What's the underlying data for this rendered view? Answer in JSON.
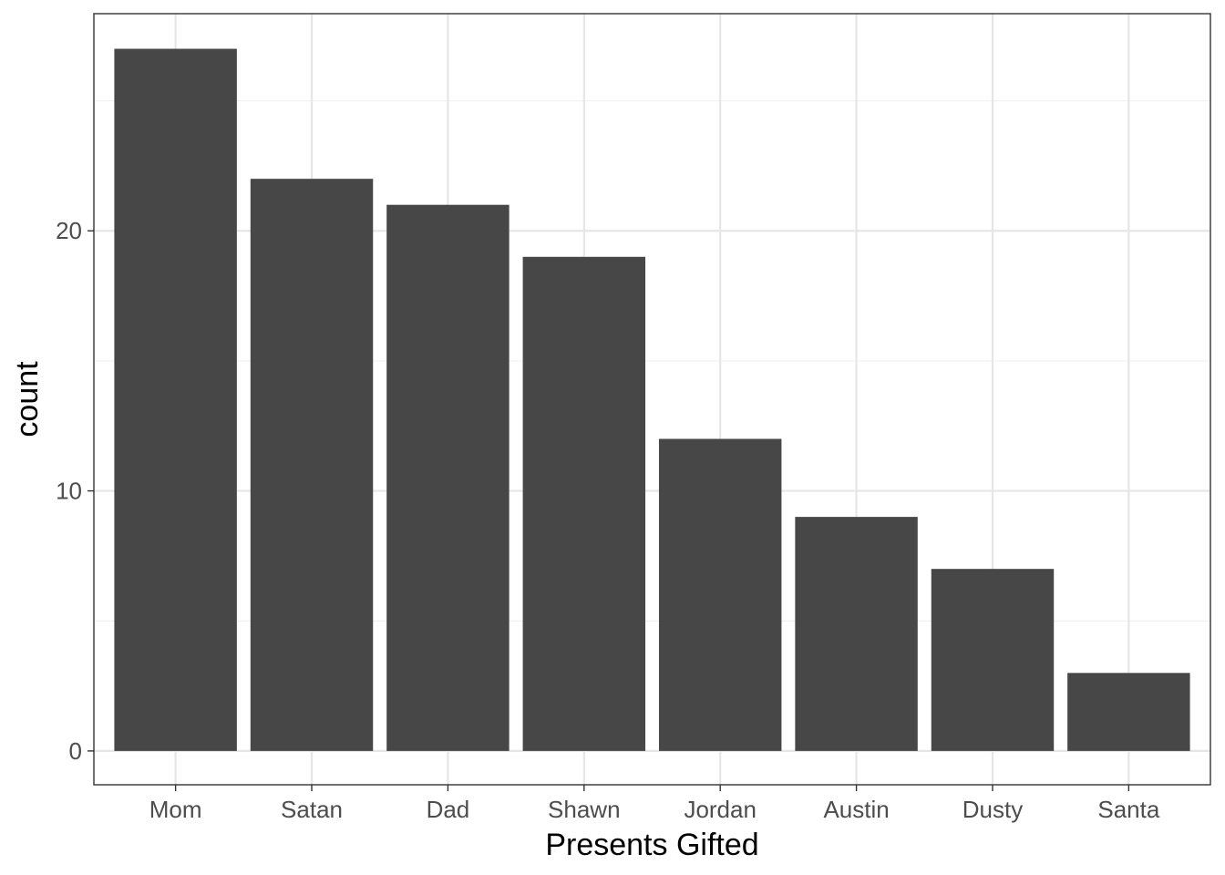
{
  "chart_data": {
    "type": "bar",
    "title": "",
    "xlabel": "Presents Gifted",
    "ylabel": "count",
    "categories": [
      "Mom",
      "Satan",
      "Dad",
      "Shawn",
      "Jordan",
      "Austin",
      "Dusty",
      "Santa"
    ],
    "values": [
      27,
      22,
      21,
      19,
      12,
      9,
      7,
      3
    ],
    "ylim": [
      -1.3,
      28.35
    ],
    "yticks": [
      0,
      10,
      20
    ],
    "ytick_labels": [
      "0",
      "10",
      "20"
    ],
    "grid": true,
    "legend": "none",
    "colors": {
      "bar": "#474747",
      "grid_major": "#e6e6e6",
      "grid_minor": "#f0f0f0",
      "panel_border": "#333333",
      "tick_text": "#4d4d4d",
      "title_text": "#000000"
    }
  }
}
